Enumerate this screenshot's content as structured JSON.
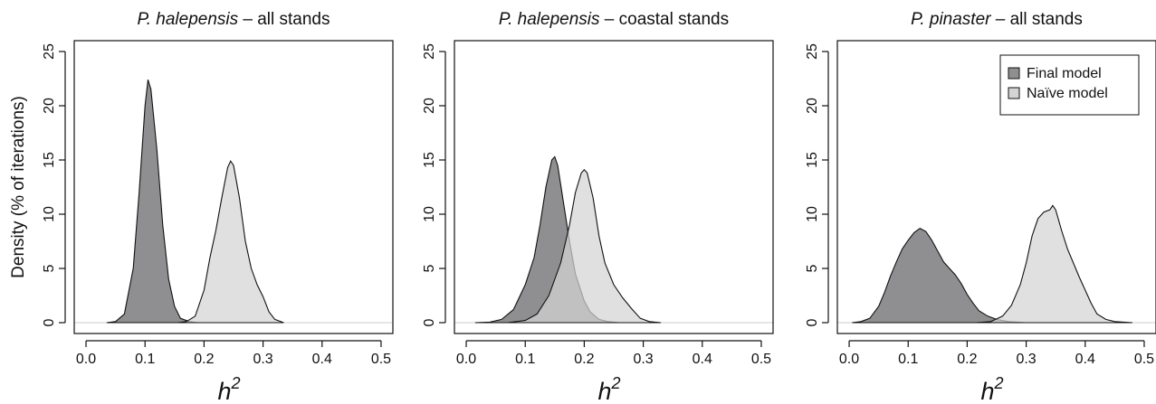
{
  "chart_data": [
    {
      "type": "area",
      "title": {
        "italic": "P. halepensis",
        "rest": " – all stands"
      },
      "xlabel": {
        "base": "h",
        "sup": "2"
      },
      "ylabel": "Density (% of iterations)",
      "xlim": [
        0.0,
        0.5
      ],
      "ylim": [
        0,
        25
      ],
      "x_ticks": [
        "0.0",
        "0.1",
        "0.2",
        "0.3",
        "0.4",
        "0.5"
      ],
      "y_ticks": [
        "0",
        "5",
        "10",
        "15",
        "20",
        "25"
      ],
      "grid": false,
      "series": [
        {
          "name": "Final model",
          "color": "#8f8f91",
          "points": [
            [
              0.035,
              0
            ],
            [
              0.05,
              0.1
            ],
            [
              0.065,
              0.8
            ],
            [
              0.08,
              5
            ],
            [
              0.09,
              12
            ],
            [
              0.1,
              20
            ],
            [
              0.105,
              22.4
            ],
            [
              0.11,
              21.5
            ],
            [
              0.12,
              16
            ],
            [
              0.13,
              9
            ],
            [
              0.14,
              4
            ],
            [
              0.15,
              1.5
            ],
            [
              0.16,
              0.4
            ],
            [
              0.175,
              0.1
            ],
            [
              0.19,
              0
            ]
          ]
        },
        {
          "name": "Naïve model",
          "color": "#d4d4d6",
          "points": [
            [
              0.155,
              0
            ],
            [
              0.17,
              0.1
            ],
            [
              0.185,
              0.6
            ],
            [
              0.2,
              3
            ],
            [
              0.21,
              6
            ],
            [
              0.22,
              8.5
            ],
            [
              0.23,
              11.5
            ],
            [
              0.24,
              14.3
            ],
            [
              0.245,
              14.9
            ],
            [
              0.25,
              14.5
            ],
            [
              0.26,
              11.5
            ],
            [
              0.27,
              7.5
            ],
            [
              0.28,
              5
            ],
            [
              0.29,
              3.5
            ],
            [
              0.3,
              2.4
            ],
            [
              0.31,
              1
            ],
            [
              0.32,
              0.3
            ],
            [
              0.335,
              0
            ]
          ]
        }
      ]
    },
    {
      "type": "area",
      "title": {
        "italic": "P. halepensis",
        "rest": " – coastal stands"
      },
      "xlabel": {
        "base": "h",
        "sup": "2"
      },
      "ylabel": "",
      "xlim": [
        0.0,
        0.5
      ],
      "ylim": [
        0,
        25
      ],
      "x_ticks": [
        "0.0",
        "0.1",
        "0.2",
        "0.3",
        "0.4",
        "0.5"
      ],
      "y_ticks": [
        "0",
        "5",
        "10",
        "15",
        "20",
        "25"
      ],
      "grid": false,
      "series": [
        {
          "name": "Final model",
          "color": "#8f8f91",
          "points": [
            [
              0.015,
              0
            ],
            [
              0.04,
              0.05
            ],
            [
              0.06,
              0.3
            ],
            [
              0.08,
              1.2
            ],
            [
              0.1,
              3.5
            ],
            [
              0.115,
              6
            ],
            [
              0.125,
              9
            ],
            [
              0.135,
              12.5
            ],
            [
              0.145,
              15
            ],
            [
              0.15,
              15.3
            ],
            [
              0.155,
              14.5
            ],
            [
              0.165,
              11
            ],
            [
              0.175,
              7.5
            ],
            [
              0.185,
              4.5
            ],
            [
              0.2,
              2
            ],
            [
              0.21,
              1
            ],
            [
              0.225,
              0.3
            ],
            [
              0.24,
              0.1
            ],
            [
              0.26,
              0
            ]
          ]
        },
        {
          "name": "Naïve model",
          "color": "#d4d4d6",
          "points": [
            [
              0.07,
              0
            ],
            [
              0.1,
              0.2
            ],
            [
              0.12,
              0.8
            ],
            [
              0.14,
              2.5
            ],
            [
              0.16,
              5.5
            ],
            [
              0.175,
              9
            ],
            [
              0.185,
              12
            ],
            [
              0.195,
              13.8
            ],
            [
              0.2,
              14.1
            ],
            [
              0.205,
              13.8
            ],
            [
              0.215,
              11.5
            ],
            [
              0.225,
              8
            ],
            [
              0.235,
              5.5
            ],
            [
              0.25,
              3.5
            ],
            [
              0.265,
              2.3
            ],
            [
              0.28,
              1.3
            ],
            [
              0.295,
              0.4
            ],
            [
              0.31,
              0.1
            ],
            [
              0.33,
              0
            ]
          ]
        }
      ]
    },
    {
      "type": "area",
      "title": {
        "italic": "P. pinaster",
        "rest": " – all stands"
      },
      "xlabel": {
        "base": "h",
        "sup": "2"
      },
      "ylabel": "",
      "xlim": [
        0.0,
        0.5
      ],
      "ylim": [
        0,
        25
      ],
      "x_ticks": [
        "0.0",
        "0.1",
        "0.2",
        "0.3",
        "0.4",
        "0.5"
      ],
      "y_ticks": [
        "0",
        "5",
        "10",
        "15",
        "20",
        "25"
      ],
      "grid": false,
      "legend": {
        "position": "top-right",
        "entries": [
          {
            "label": "Final model",
            "color": "#8f8f91"
          },
          {
            "label": "Naïve model",
            "color": "#d4d4d6"
          }
        ]
      },
      "series": [
        {
          "name": "Final model",
          "color": "#8f8f91",
          "points": [
            [
              0.005,
              0
            ],
            [
              0.02,
              0.1
            ],
            [
              0.035,
              0.4
            ],
            [
              0.05,
              1.5
            ],
            [
              0.06,
              2.8
            ],
            [
              0.07,
              4.3
            ],
            [
              0.08,
              5.6
            ],
            [
              0.09,
              6.8
            ],
            [
              0.1,
              7.6
            ],
            [
              0.11,
              8.3
            ],
            [
              0.12,
              8.7
            ],
            [
              0.13,
              8.4
            ],
            [
              0.14,
              7.6
            ],
            [
              0.15,
              6.6
            ],
            [
              0.16,
              5.6
            ],
            [
              0.17,
              5
            ],
            [
              0.18,
              4.4
            ],
            [
              0.19,
              3.6
            ],
            [
              0.2,
              2.6
            ],
            [
              0.21,
              1.8
            ],
            [
              0.22,
              1.1
            ],
            [
              0.235,
              0.6
            ],
            [
              0.25,
              0.3
            ],
            [
              0.27,
              0.1
            ],
            [
              0.3,
              0
            ]
          ]
        },
        {
          "name": "Naïve model",
          "color": "#d4d4d6",
          "points": [
            [
              0.215,
              0
            ],
            [
              0.24,
              0.1
            ],
            [
              0.26,
              0.6
            ],
            [
              0.275,
              1.6
            ],
            [
              0.29,
              3.5
            ],
            [
              0.3,
              5.5
            ],
            [
              0.31,
              8
            ],
            [
              0.32,
              9.6
            ],
            [
              0.33,
              10.2
            ],
            [
              0.34,
              10.4
            ],
            [
              0.345,
              10.8
            ],
            [
              0.35,
              10.4
            ],
            [
              0.36,
              8.5
            ],
            [
              0.37,
              6.8
            ],
            [
              0.38,
              5.5
            ],
            [
              0.39,
              4.2
            ],
            [
              0.4,
              3
            ],
            [
              0.41,
              1.8
            ],
            [
              0.42,
              0.8
            ],
            [
              0.435,
              0.3
            ],
            [
              0.45,
              0.1
            ],
            [
              0.48,
              0
            ]
          ]
        }
      ]
    }
  ]
}
